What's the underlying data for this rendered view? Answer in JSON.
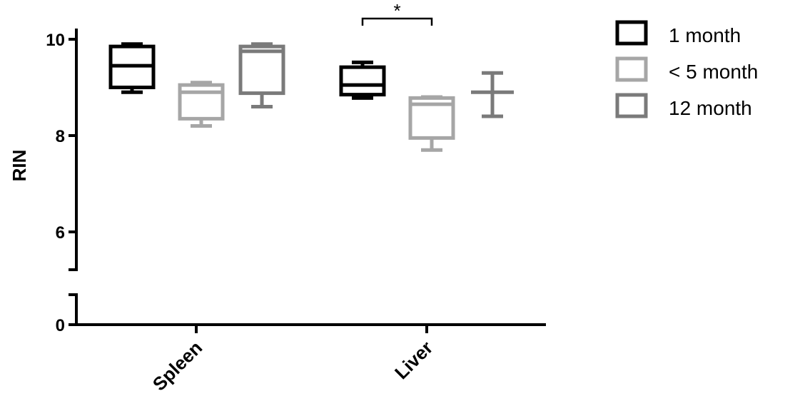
{
  "chart_data": {
    "type": "box",
    "ylabel": "RIN",
    "xlabel": "",
    "title": "",
    "categories": [
      "Spleen",
      "Liver"
    ],
    "y_segments": [
      [
        0,
        0.6
      ],
      [
        5.2,
        10.4
      ]
    ],
    "yticks": [
      0,
      6,
      8,
      10
    ],
    "series": [
      {
        "name": "1 month",
        "color": "#000000",
        "boxes": [
          {
            "min": 8.9,
            "q1": 9.0,
            "median": 9.45,
            "q3": 9.85,
            "max": 9.9
          },
          {
            "min": 8.78,
            "q1": 8.85,
            "median": 9.05,
            "q3": 9.42,
            "max": 9.52
          }
        ]
      },
      {
        "name": "< 5 month",
        "color": "#a6a6a6",
        "boxes": [
          {
            "min": 8.2,
            "q1": 8.35,
            "median": 8.9,
            "q3": 9.05,
            "max": 9.1
          },
          {
            "min": 7.7,
            "q1": 7.95,
            "median": 8.65,
            "q3": 8.78,
            "max": 8.8
          }
        ]
      },
      {
        "name": "12 month",
        "color": "#7a7a7a",
        "boxes": [
          {
            "min": 8.6,
            "q1": 8.88,
            "median": 9.75,
            "q3": 9.85,
            "max": 9.9
          },
          {
            "min": 8.4,
            "q1": 8.9,
            "median": 8.9,
            "q3": 8.9,
            "max": 9.3
          }
        ]
      }
    ],
    "significance": [
      {
        "category": "Liver",
        "from_series": 0,
        "to_series": 1,
        "label": "*"
      }
    ],
    "legend_position": "top-right"
  }
}
